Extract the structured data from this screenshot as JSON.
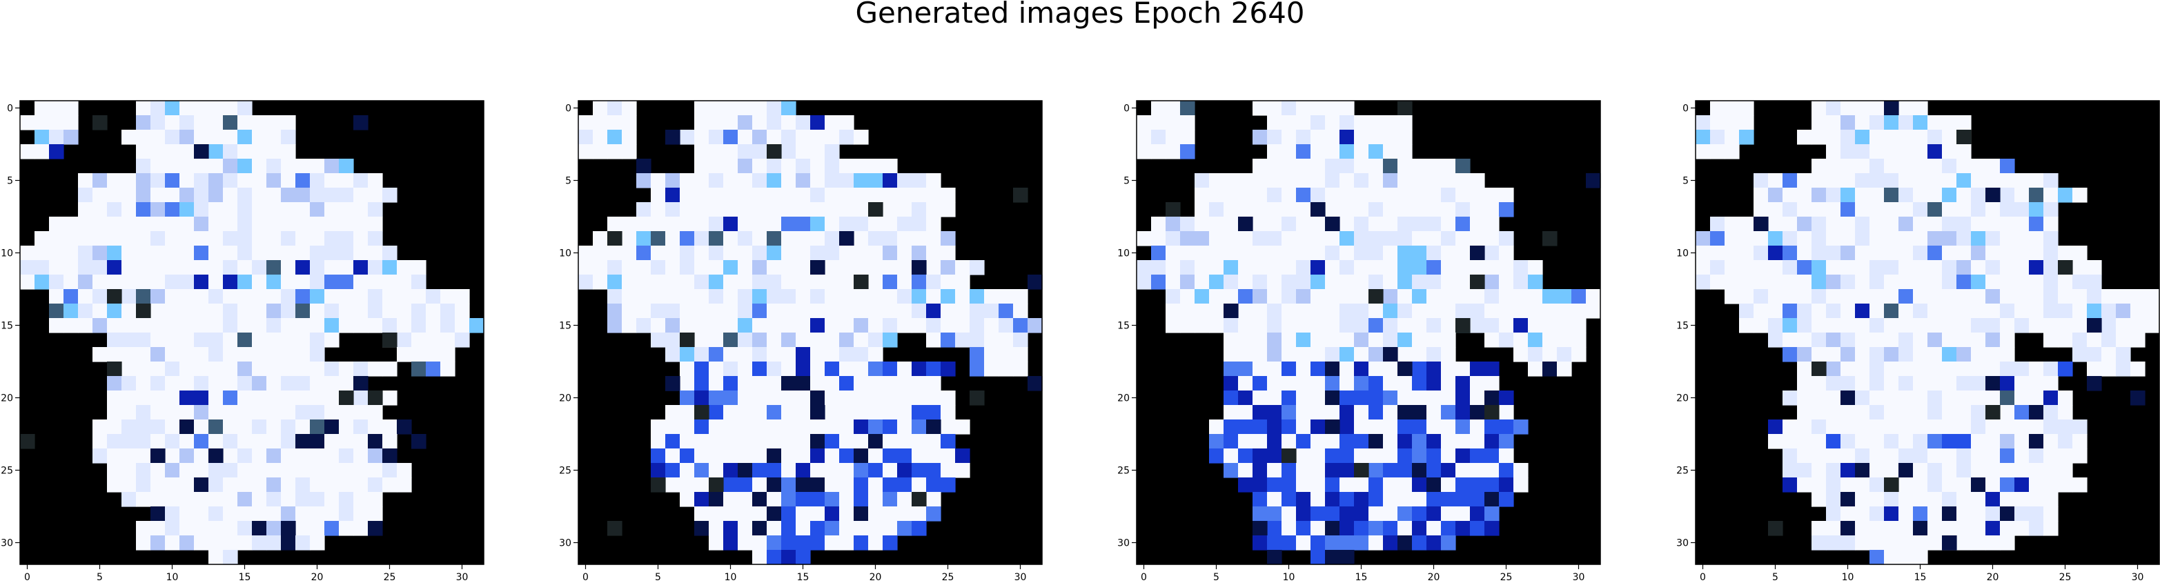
{
  "figure": {
    "title": "Generated images Epoch 2640"
  },
  "colors": {
    "background": "#000000",
    "white": "#f7f9ff",
    "pale_blue": "#dfe8ff",
    "light_blue": "#b3c6f7",
    "sky_blue": "#74c7ff",
    "medium_blue": "#4d7cf2",
    "blue": "#2450e8",
    "dark_blue": "#0b1fb0",
    "navy": "#061247",
    "slate": "#3b5c78",
    "olive_green": "#2e6a34",
    "dark_gray": "#1c2426",
    "lavender": "#a99bf0"
  },
  "chart_data": [
    {
      "type": "heatmap",
      "title": "",
      "grid_size": [
        32,
        32
      ],
      "x_ticks": [
        0,
        5,
        10,
        15,
        20,
        25,
        30
      ],
      "y_ticks": [
        0,
        5,
        10,
        15,
        20,
        25,
        30
      ],
      "xlim": [
        -0.5,
        31.5
      ],
      "ylim": [
        31.5,
        -0.5
      ],
      "grid": false,
      "content": "32x32 pixel-art generated image: white blob with light-blue speckles, blue cluster lower right, black background"
    },
    {
      "type": "heatmap",
      "title": "",
      "grid_size": [
        32,
        32
      ],
      "x_ticks": [
        0,
        5,
        10,
        15,
        20,
        25,
        30
      ],
      "y_ticks": [
        0,
        5,
        10,
        15,
        20,
        25,
        30
      ],
      "xlim": [
        -0.5,
        31.5
      ],
      "ylim": [
        31.5,
        -0.5
      ],
      "grid": false,
      "content": "32x32 pixel-art generated image: white upper body, saturated blue lower body, black background"
    },
    {
      "type": "heatmap",
      "title": "",
      "grid_size": [
        32,
        32
      ],
      "x_ticks": [
        0,
        5,
        10,
        15,
        20,
        25,
        30
      ],
      "y_ticks": [
        0,
        5,
        10,
        15,
        20,
        25,
        30
      ],
      "xlim": [
        -0.5,
        31.5
      ],
      "ylim": [
        31.5,
        -0.5
      ],
      "grid": false,
      "content": "32x32 pixel-art generated image: white upper body, deep blue lower body, black background"
    },
    {
      "type": "heatmap",
      "title": "",
      "grid_size": [
        32,
        32
      ],
      "x_ticks": [
        0,
        5,
        10,
        15,
        20,
        25,
        30
      ],
      "y_ticks": [
        0,
        5,
        10,
        15,
        20,
        25,
        30
      ],
      "xlim": [
        -0.5,
        31.5
      ],
      "ylim": [
        31.5,
        -0.5
      ],
      "grid": false,
      "content": "32x32 pixel-art generated image: mostly white blob similar to panel 1, black background"
    }
  ]
}
